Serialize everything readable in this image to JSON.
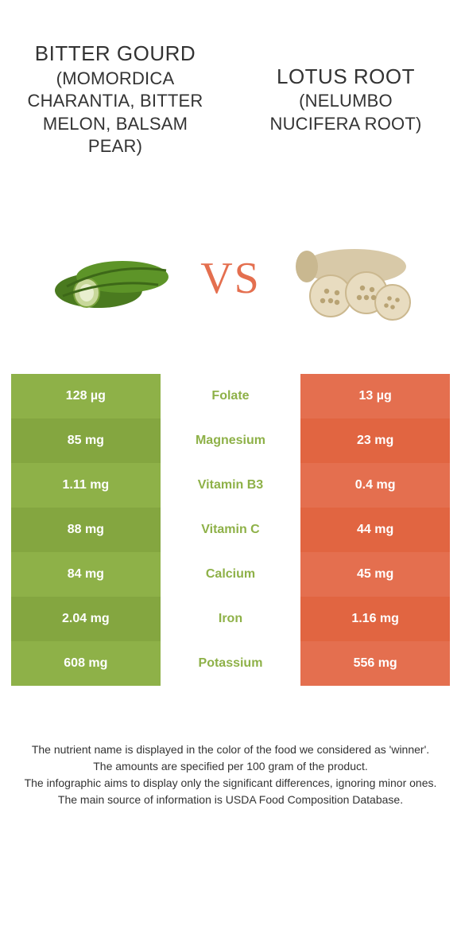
{
  "left_food": {
    "name": "Bitter gourd",
    "subtitle": "(Momordica charantia, bitter melon, balsam pear)",
    "color": "#8eb148",
    "colors_alt": [
      "#8eb148",
      "#84a640"
    ]
  },
  "right_food": {
    "name": "Lotus root",
    "subtitle": "(Nelumbo nucifera root)",
    "color": "#e46f4f",
    "colors_alt": [
      "#e46f4f",
      "#e16541"
    ]
  },
  "vs_label": "VS",
  "vs_color": "#e46f4f",
  "rows": [
    {
      "nutrient": "Folate",
      "left": "128 µg",
      "right": "13 µg",
      "winner": "left"
    },
    {
      "nutrient": "Magnesium",
      "left": "85 mg",
      "right": "23 mg",
      "winner": "left"
    },
    {
      "nutrient": "Vitamin B3",
      "left": "1.11 mg",
      "right": "0.4 mg",
      "winner": "left"
    },
    {
      "nutrient": "Vitamin C",
      "left": "88 mg",
      "right": "44 mg",
      "winner": "left"
    },
    {
      "nutrient": "Calcium",
      "left": "84 mg",
      "right": "45 mg",
      "winner": "left"
    },
    {
      "nutrient": "Iron",
      "left": "2.04 mg",
      "right": "1.16 mg",
      "winner": "left"
    },
    {
      "nutrient": "Potassium",
      "left": "608 mg",
      "right": "556 mg",
      "winner": "left"
    }
  ],
  "footer": {
    "line1": "The nutrient name is displayed in the color of the food we considered as 'winner'.",
    "line2": "The amounts are specified per 100 gram of the product.",
    "line3": "The infographic aims to display only the significant differences, ignoring minor ones.",
    "line4": "The main source of information is USDA Food Composition Database."
  }
}
